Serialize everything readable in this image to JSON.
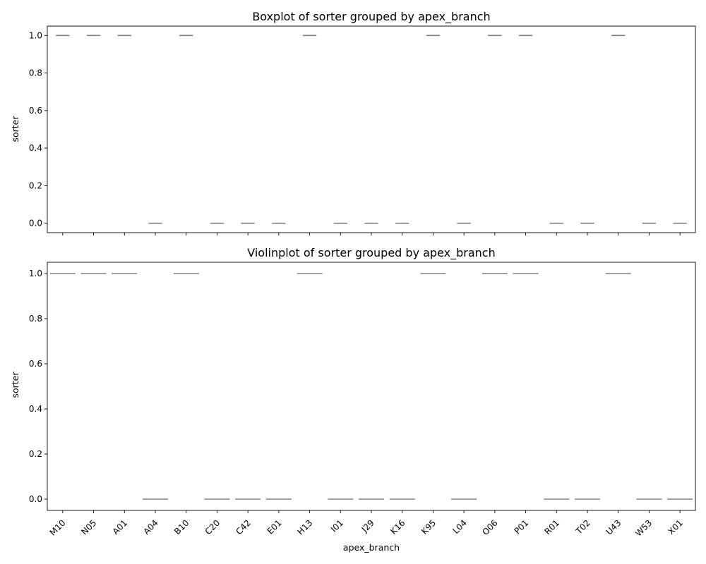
{
  "chart_data": [
    {
      "type": "box",
      "title": "Boxplot of sorter grouped by apex_branch",
      "xlabel": "",
      "ylabel": "sorter",
      "ylim": [
        -0.05,
        1.05
      ],
      "yticks": [
        "0.0",
        "0.2",
        "0.4",
        "0.6",
        "0.8",
        "1.0"
      ],
      "show_xticklabels": false,
      "categories": [
        "M10",
        "N05",
        "A01",
        "A04",
        "B10",
        "C20",
        "C42",
        "E01",
        "H13",
        "I01",
        "J29",
        "K16",
        "K95",
        "L04",
        "O06",
        "P01",
        "R01",
        "T02",
        "U43",
        "W53",
        "X01"
      ],
      "values": [
        1,
        1,
        1,
        0,
        1,
        0,
        0,
        0,
        1,
        0,
        0,
        0,
        1,
        0,
        1,
        1,
        0,
        0,
        1,
        0,
        0
      ]
    },
    {
      "type": "violin",
      "title": "Violinplot of sorter grouped by apex_branch",
      "xlabel": "apex_branch",
      "ylabel": "sorter",
      "ylim": [
        -0.05,
        1.05
      ],
      "yticks": [
        "0.0",
        "0.2",
        "0.4",
        "0.6",
        "0.8",
        "1.0"
      ],
      "show_xticklabels": true,
      "categories": [
        "M10",
        "N05",
        "A01",
        "A04",
        "B10",
        "C20",
        "C42",
        "E01",
        "H13",
        "I01",
        "J29",
        "K16",
        "K95",
        "L04",
        "O06",
        "P01",
        "R01",
        "T02",
        "U43",
        "W53",
        "X01"
      ],
      "values": [
        1,
        1,
        1,
        0,
        1,
        0,
        0,
        0,
        1,
        0,
        0,
        0,
        1,
        0,
        1,
        1,
        0,
        0,
        1,
        0,
        0
      ]
    }
  ]
}
